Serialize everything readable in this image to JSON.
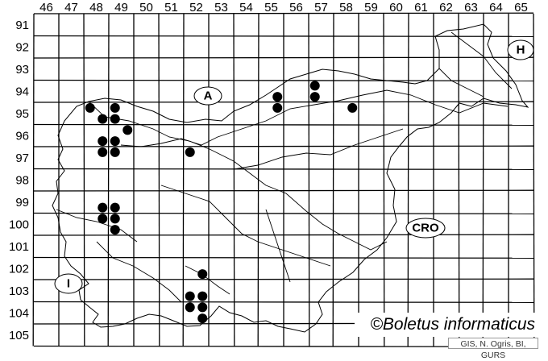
{
  "map": {
    "columns": [
      "46",
      "47",
      "48",
      "49",
      "50",
      "51",
      "52",
      "53",
      "54",
      "55",
      "56",
      "57",
      "58",
      "59",
      "60",
      "61",
      "62",
      "63",
      "64",
      "65"
    ],
    "rows": [
      "91",
      "92",
      "93",
      "94",
      "95",
      "96",
      "97",
      "98",
      "99",
      "100",
      "101",
      "102",
      "103",
      "104",
      "105"
    ],
    "country_labels": [
      {
        "id": "austria",
        "text": "A"
      },
      {
        "id": "hungary",
        "text": "H"
      },
      {
        "id": "croatia",
        "text": "CRO"
      },
      {
        "id": "italy",
        "text": "I"
      }
    ],
    "records_note": "quadrants: 1=top-left, 2=top-right, 3=bottom-left, 4=bottom-right",
    "records": [
      {
        "col": 48,
        "row": 95,
        "q": 1
      },
      {
        "col": 49,
        "row": 95,
        "q": 1
      },
      {
        "col": 48,
        "row": 95,
        "q": 4
      },
      {
        "col": 49,
        "row": 95,
        "q": 3
      },
      {
        "col": 49,
        "row": 96,
        "q": 2
      },
      {
        "col": 48,
        "row": 96,
        "q": 4
      },
      {
        "col": 49,
        "row": 96,
        "q": 3
      },
      {
        "col": 48,
        "row": 97,
        "q": 2
      },
      {
        "col": 49,
        "row": 97,
        "q": 1
      },
      {
        "col": 52,
        "row": 97,
        "q": 1
      },
      {
        "col": 55,
        "row": 94,
        "q": 4
      },
      {
        "col": 55,
        "row": 95,
        "q": 2
      },
      {
        "col": 57,
        "row": 94,
        "q": 1
      },
      {
        "col": 57,
        "row": 94,
        "q": 3
      },
      {
        "col": 58,
        "row": 95,
        "q": 2
      },
      {
        "col": 48,
        "row": 99,
        "q": 4
      },
      {
        "col": 49,
        "row": 99,
        "q": 3
      },
      {
        "col": 48,
        "row": 100,
        "q": 2
      },
      {
        "col": 49,
        "row": 100,
        "q": 1
      },
      {
        "col": 49,
        "row": 100,
        "q": 3
      },
      {
        "col": 52,
        "row": 102,
        "q": 4
      },
      {
        "col": 52,
        "row": 103,
        "q": 3
      },
      {
        "col": 52,
        "row": 103,
        "q": 4
      },
      {
        "col": 52,
        "row": 104,
        "q": 1
      },
      {
        "col": 52,
        "row": 104,
        "q": 2
      },
      {
        "col": 52,
        "row": 104,
        "q": 4
      }
    ],
    "marker_color": "#000000"
  },
  "copyright": "©Boletus informaticus",
  "credit": "GIS, N. Ogris, BI, GURS"
}
